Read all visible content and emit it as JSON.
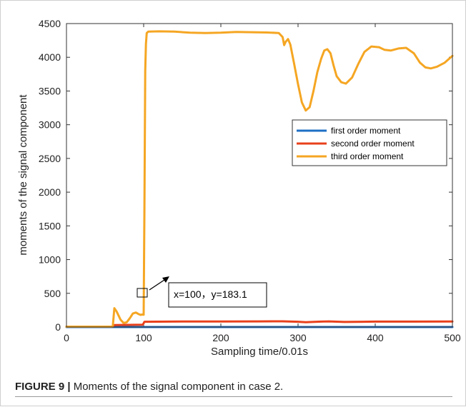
{
  "chart_data": {
    "type": "line",
    "xlabel": "Sampling time/0.01s",
    "ylabel": "moments of the signal component",
    "xlim": [
      0,
      500
    ],
    "ylim": [
      0,
      4500
    ],
    "xticks": [
      0,
      100,
      200,
      300,
      400,
      500
    ],
    "yticks": [
      0,
      500,
      1000,
      1500,
      2000,
      2500,
      3000,
      3500,
      4000,
      4500
    ],
    "grid": false,
    "legend_position": "right",
    "series": [
      {
        "name": "first order moment",
        "color": "#1f6fc4",
        "points": [
          [
            0,
            0
          ],
          [
            500,
            0
          ]
        ]
      },
      {
        "name": "second order moment",
        "color": "#e8401c",
        "points": [
          [
            0,
            5
          ],
          [
            60,
            5
          ],
          [
            62,
            30
          ],
          [
            99,
            35
          ],
          [
            101,
            78
          ],
          [
            150,
            82
          ],
          [
            200,
            83
          ],
          [
            250,
            84
          ],
          [
            280,
            85
          ],
          [
            300,
            78
          ],
          [
            310,
            72
          ],
          [
            330,
            80
          ],
          [
            340,
            84
          ],
          [
            360,
            75
          ],
          [
            400,
            80
          ],
          [
            450,
            80
          ],
          [
            500,
            82
          ]
        ]
      },
      {
        "name": "third order moment",
        "color": "#f5a623",
        "points": [
          [
            0,
            5
          ],
          [
            58,
            5
          ],
          [
            60,
            10
          ],
          [
            62,
            280
          ],
          [
            65,
            230
          ],
          [
            70,
            110
          ],
          [
            74,
            60
          ],
          [
            78,
            70
          ],
          [
            82,
            130
          ],
          [
            86,
            200
          ],
          [
            90,
            215
          ],
          [
            93,
            195
          ],
          [
            96,
            180
          ],
          [
            98,
            185
          ],
          [
            100,
            183.1
          ],
          [
            101,
            1800
          ],
          [
            102,
            3800
          ],
          [
            103,
            4200
          ],
          [
            104,
            4360
          ],
          [
            106,
            4380
          ],
          [
            120,
            4385
          ],
          [
            140,
            4380
          ],
          [
            160,
            4365
          ],
          [
            180,
            4360
          ],
          [
            200,
            4365
          ],
          [
            220,
            4375
          ],
          [
            240,
            4372
          ],
          [
            260,
            4368
          ],
          [
            275,
            4360
          ],
          [
            280,
            4300
          ],
          [
            282,
            4180
          ],
          [
            284,
            4230
          ],
          [
            287,
            4270
          ],
          [
            290,
            4190
          ],
          [
            295,
            3900
          ],
          [
            300,
            3600
          ],
          [
            305,
            3330
          ],
          [
            310,
            3210
          ],
          [
            315,
            3260
          ],
          [
            320,
            3500
          ],
          [
            325,
            3780
          ],
          [
            330,
            3980
          ],
          [
            334,
            4100
          ],
          [
            338,
            4120
          ],
          [
            342,
            4060
          ],
          [
            346,
            3880
          ],
          [
            350,
            3720
          ],
          [
            356,
            3630
          ],
          [
            362,
            3610
          ],
          [
            370,
            3700
          ],
          [
            378,
            3900
          ],
          [
            386,
            4080
          ],
          [
            395,
            4160
          ],
          [
            405,
            4150
          ],
          [
            412,
            4110
          ],
          [
            420,
            4100
          ],
          [
            430,
            4130
          ],
          [
            440,
            4140
          ],
          [
            450,
            4060
          ],
          [
            458,
            3920
          ],
          [
            465,
            3850
          ],
          [
            472,
            3835
          ],
          [
            480,
            3860
          ],
          [
            490,
            3920
          ],
          [
            500,
            4020
          ]
        ]
      }
    ],
    "annotation": {
      "text": "x=100，y=183.1",
      "x": 100,
      "y": 183.1
    }
  },
  "caption": {
    "label": "FIGURE 9 |",
    "text": " Moments of the signal component in case 2."
  }
}
